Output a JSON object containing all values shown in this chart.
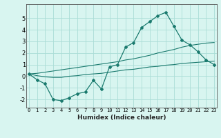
{
  "title": "",
  "xlabel": "Humidex (Indice chaleur)",
  "background_color": "#d8f5f0",
  "grid_color": "#aaddd6",
  "line_color": "#1a7a6e",
  "x_values": [
    0,
    1,
    2,
    3,
    4,
    5,
    6,
    7,
    8,
    9,
    10,
    11,
    12,
    13,
    14,
    15,
    16,
    17,
    18,
    19,
    20,
    21,
    22,
    23
  ],
  "main_line": [
    0.2,
    -0.3,
    -0.65,
    -2.0,
    -2.1,
    -1.85,
    -1.5,
    -1.35,
    -0.35,
    -1.1,
    0.8,
    1.0,
    2.5,
    2.9,
    4.2,
    4.7,
    5.2,
    5.5,
    4.3,
    3.1,
    2.7,
    2.1,
    1.4,
    1.0
  ],
  "upper_line": [
    0.2,
    0.25,
    0.35,
    0.45,
    0.55,
    0.65,
    0.75,
    0.85,
    0.95,
    1.05,
    1.15,
    1.25,
    1.4,
    1.5,
    1.65,
    1.8,
    2.0,
    2.15,
    2.3,
    2.5,
    2.65,
    2.75,
    2.85,
    2.9
  ],
  "lower_line": [
    0.2,
    0.05,
    -0.05,
    -0.1,
    -0.1,
    0.0,
    0.05,
    0.15,
    0.2,
    0.25,
    0.35,
    0.45,
    0.55,
    0.6,
    0.7,
    0.8,
    0.85,
    0.95,
    1.0,
    1.1,
    1.15,
    1.2,
    1.25,
    1.3
  ],
  "ylim": [
    -2.7,
    6.2
  ],
  "yticks": [
    -2,
    -1,
    0,
    1,
    2,
    3,
    4,
    5
  ],
  "xticks": [
    0,
    1,
    2,
    3,
    4,
    5,
    6,
    7,
    8,
    9,
    10,
    11,
    12,
    13,
    14,
    15,
    16,
    17,
    18,
    19,
    20,
    21,
    22,
    23
  ]
}
